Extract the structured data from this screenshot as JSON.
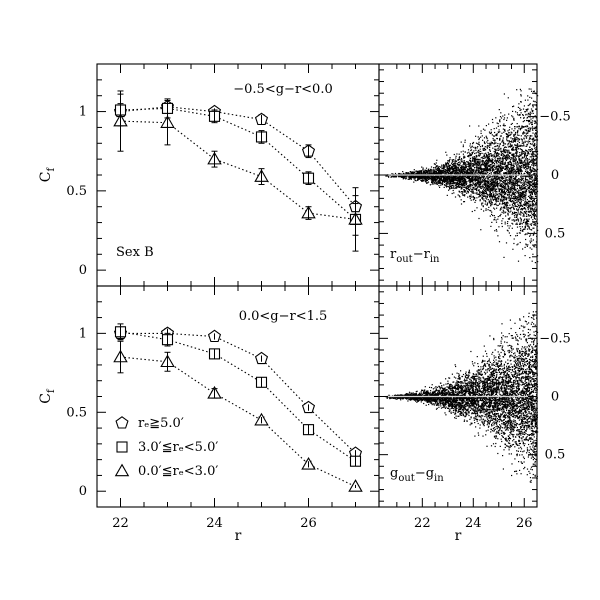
{
  "chart_data": [
    {
      "type": "line",
      "panel": "top-left",
      "title": "−0.5<g−r<0.0",
      "label": "Sex B",
      "xlabel": "",
      "ylabel": "C",
      "ylabel_sub": "f",
      "xlim": [
        21.5,
        27.5
      ],
      "ylim": [
        -0.1,
        1.3
      ],
      "yticks": [
        "0",
        "0.5",
        "1"
      ],
      "x": [
        22,
        23,
        24,
        25,
        26,
        27
      ],
      "series": [
        {
          "marker": "pentagon",
          "values": [
            1.0,
            1.03,
            1.0,
            0.95,
            0.75,
            0.4
          ],
          "errors": [
            0.05,
            0.04,
            0.02,
            0.03,
            0.04,
            0.07
          ]
        },
        {
          "marker": "square",
          "values": [
            1.01,
            1.02,
            0.97,
            0.84,
            0.58,
            0.32
          ],
          "errors": [
            0.1,
            0.06,
            0.04,
            0.04,
            0.04,
            0.1
          ]
        },
        {
          "marker": "triangle",
          "values": [
            0.94,
            0.93,
            0.7,
            0.59,
            0.36,
            0.32
          ],
          "errors": [
            0.19,
            0.14,
            0.05,
            0.05,
            0.04,
            0.2
          ]
        }
      ]
    },
    {
      "type": "line",
      "panel": "bottom-left",
      "title": "0.0<g−r<1.5",
      "xlabel": "r",
      "ylabel": "C",
      "ylabel_sub": "f",
      "xlim": [
        21.5,
        27.5
      ],
      "ylim": [
        -0.1,
        1.3
      ],
      "xticks": [
        "22",
        "24",
        "26"
      ],
      "yticks": [
        "0",
        "0.5",
        "1"
      ],
      "x": [
        22,
        23,
        24,
        25,
        26,
        27
      ],
      "series": [
        {
          "name": "rₑ≧5.0′",
          "marker": "pentagon",
          "values": [
            1.0,
            1.0,
            0.98,
            0.84,
            0.53,
            0.24
          ],
          "errors": [
            0.04,
            0.03,
            0.02,
            0.02,
            0.02,
            0.02
          ]
        },
        {
          "name": "3.0′≦rₑ<5.0′",
          "marker": "square",
          "values": [
            1.01,
            0.96,
            0.87,
            0.69,
            0.39,
            0.19
          ],
          "errors": [
            0.05,
            0.04,
            0.03,
            0.03,
            0.03,
            0.03
          ]
        },
        {
          "name": "0.0′≦rₑ<3.0′",
          "marker": "triangle",
          "values": [
            0.85,
            0.82,
            0.62,
            0.45,
            0.17,
            0.03
          ],
          "errors": [
            0.1,
            0.06,
            0.03,
            0.02,
            0.02,
            0.01
          ]
        }
      ]
    },
    {
      "type": "scatter",
      "panel": "top-right",
      "label": "r",
      "label_sub1": "out",
      "label_mid": "−r",
      "label_sub2": "in",
      "xlim": [
        20.3,
        26.5
      ],
      "ylim": [
        -0.95,
        0.95
      ],
      "y_inverted": true,
      "yticks": [
        "−0.5",
        "0",
        "0.5"
      ],
      "description_values": {
        "x_min": 20.5,
        "x_max": 26.5,
        "spread_at_x_max": 0.75
      }
    },
    {
      "type": "scatter",
      "panel": "bottom-right",
      "label": "g",
      "label_sub1": "out",
      "label_mid": "−g",
      "label_sub2": "in",
      "xlabel": "r",
      "xlim": [
        20.3,
        26.5
      ],
      "ylim": [
        -0.95,
        0.95
      ],
      "y_inverted": true,
      "xticks": [
        "22",
        "24",
        "26"
      ],
      "yticks": [
        "−0.5",
        "0",
        "0.5"
      ],
      "description_values": {
        "x_min": 20.5,
        "x_max": 26.5,
        "spread_at_x_max": 0.75
      }
    }
  ]
}
